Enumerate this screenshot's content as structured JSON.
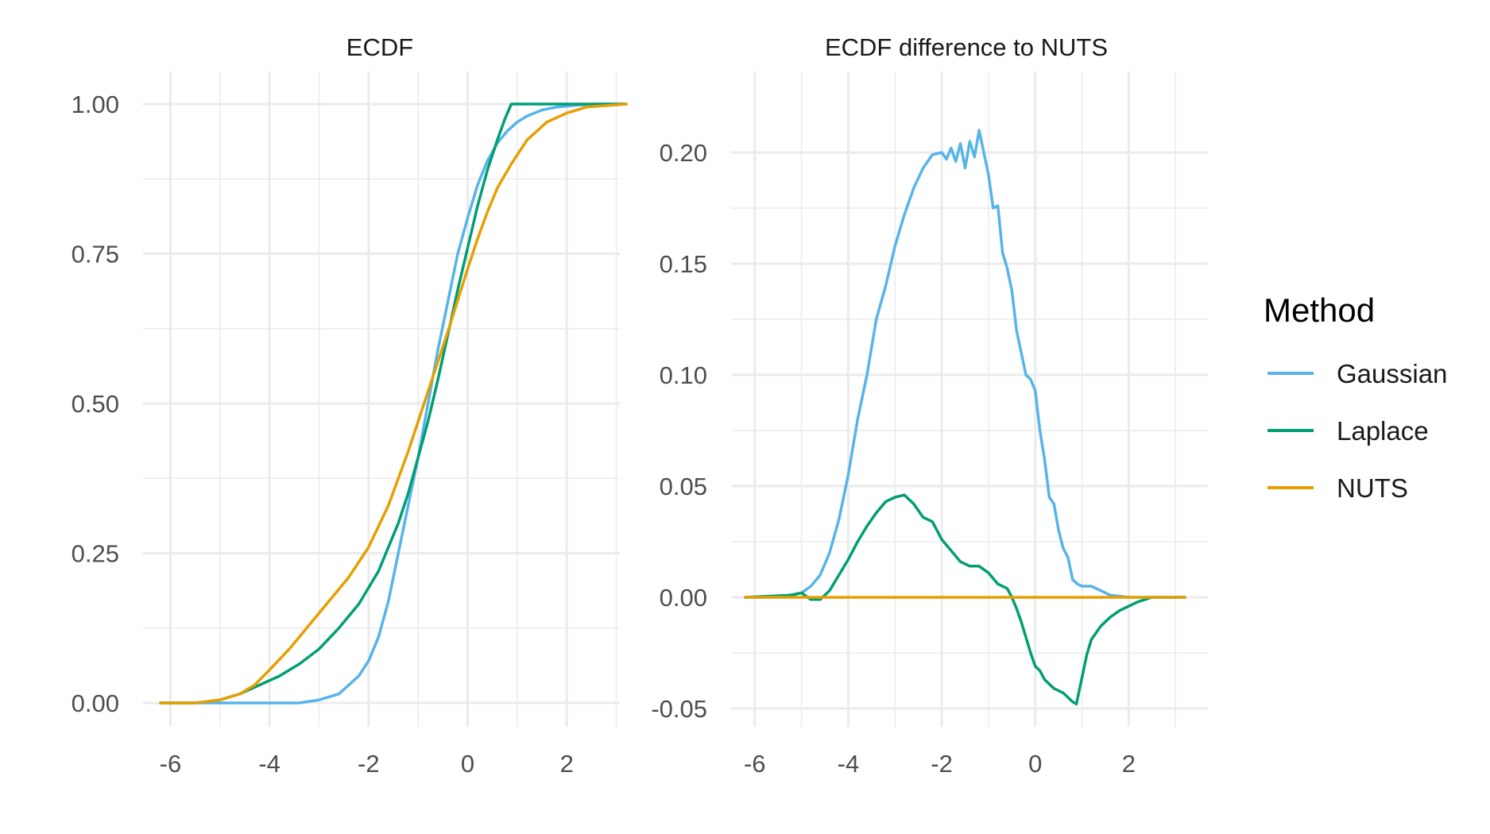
{
  "legend": {
    "title": "Method",
    "position": "right",
    "items": [
      {
        "name": "Gaussian",
        "color": "#56B4E9"
      },
      {
        "name": "Laplace",
        "color": "#009E73"
      },
      {
        "name": "NUTS",
        "color": "#E69F00"
      }
    ]
  },
  "chart_data": [
    {
      "type": "line",
      "title": "ECDF",
      "xlabel": "",
      "ylabel": "",
      "xlim": [
        -6.2,
        3.2
      ],
      "ylim": [
        0,
        1
      ],
      "grid": true,
      "x_ticks": [
        -6,
        -4,
        -2,
        0,
        2
      ],
      "x_tick_labels": [
        "-6",
        "-4",
        "-2",
        "0",
        "2"
      ],
      "y_ticks": [
        0,
        0.25,
        0.5,
        0.75,
        1
      ],
      "y_tick_labels": [
        "0.00",
        "0.25",
        "0.50",
        "0.75",
        "1.00"
      ],
      "series": [
        {
          "name": "Gaussian",
          "color": "#56B4E9",
          "points": [
            [
              -6.2,
              0
            ],
            [
              -5,
              0
            ],
            [
              -4,
              0
            ],
            [
              -3.4,
              0
            ],
            [
              -3,
              0.005
            ],
            [
              -2.6,
              0.015
            ],
            [
              -2.4,
              0.03
            ],
            [
              -2.2,
              0.045
            ],
            [
              -2,
              0.07
            ],
            [
              -1.8,
              0.11
            ],
            [
              -1.6,
              0.17
            ],
            [
              -1.4,
              0.25
            ],
            [
              -1.2,
              0.33
            ],
            [
              -1,
              0.41
            ],
            [
              -0.8,
              0.5
            ],
            [
              -0.6,
              0.59
            ],
            [
              -0.4,
              0.67
            ],
            [
              -0.2,
              0.75
            ],
            [
              0,
              0.81
            ],
            [
              0.2,
              0.865
            ],
            [
              0.4,
              0.905
            ],
            [
              0.6,
              0.935
            ],
            [
              0.8,
              0.955
            ],
            [
              1,
              0.97
            ],
            [
              1.2,
              0.98
            ],
            [
              1.5,
              0.99
            ],
            [
              1.8,
              0.995
            ],
            [
              2.2,
              0.998
            ],
            [
              2.6,
              1
            ],
            [
              3.2,
              1
            ]
          ]
        },
        {
          "name": "Laplace",
          "color": "#009E73",
          "points": [
            [
              -6.2,
              0
            ],
            [
              -5.5,
              0
            ],
            [
              -5,
              0.005
            ],
            [
              -4.6,
              0.015
            ],
            [
              -4.2,
              0.03
            ],
            [
              -3.8,
              0.045
            ],
            [
              -3.4,
              0.065
            ],
            [
              -3,
              0.09
            ],
            [
              -2.6,
              0.125
            ],
            [
              -2.2,
              0.165
            ],
            [
              -1.8,
              0.22
            ],
            [
              -1.4,
              0.3
            ],
            [
              -1.2,
              0.35
            ],
            [
              -1,
              0.41
            ],
            [
              -0.8,
              0.47
            ],
            [
              -0.6,
              0.54
            ],
            [
              -0.4,
              0.615
            ],
            [
              -0.2,
              0.69
            ],
            [
              0,
              0.76
            ],
            [
              0.2,
              0.83
            ],
            [
              0.4,
              0.89
            ],
            [
              0.6,
              0.94
            ],
            [
              0.75,
              0.975
            ],
            [
              0.88,
              1
            ],
            [
              1.5,
              1
            ],
            [
              2.5,
              1
            ],
            [
              3.2,
              1
            ]
          ]
        },
        {
          "name": "NUTS",
          "color": "#E69F00",
          "points": [
            [
              -6.2,
              0
            ],
            [
              -5.5,
              0
            ],
            [
              -5,
              0.005
            ],
            [
              -4.6,
              0.015
            ],
            [
              -4.3,
              0.03
            ],
            [
              -4,
              0.055
            ],
            [
              -3.6,
              0.09
            ],
            [
              -3.2,
              0.13
            ],
            [
              -2.8,
              0.17
            ],
            [
              -2.4,
              0.21
            ],
            [
              -2,
              0.26
            ],
            [
              -1.6,
              0.33
            ],
            [
              -1.2,
              0.42
            ],
            [
              -0.8,
              0.52
            ],
            [
              -0.4,
              0.62
            ],
            [
              0,
              0.725
            ],
            [
              0.2,
              0.775
            ],
            [
              0.4,
              0.82
            ],
            [
              0.6,
              0.86
            ],
            [
              0.88,
              0.9
            ],
            [
              1.2,
              0.94
            ],
            [
              1.6,
              0.97
            ],
            [
              2,
              0.985
            ],
            [
              2.4,
              0.995
            ],
            [
              3.2,
              1
            ]
          ]
        }
      ]
    },
    {
      "type": "line",
      "title": "ECDF difference to NUTS",
      "xlabel": "",
      "ylabel": "",
      "xlim": [
        -6.2,
        3.2
      ],
      "ylim": [
        -0.05,
        0.21
      ],
      "grid": true,
      "x_ticks": [
        -6,
        -4,
        -2,
        0,
        2
      ],
      "x_tick_labels": [
        "-6",
        "-4",
        "-2",
        "0",
        "2"
      ],
      "y_ticks": [
        -0.05,
        0,
        0.05,
        0.1,
        0.15,
        0.2
      ],
      "y_tick_labels": [
        "-0.05",
        "0.00",
        "0.05",
        "0.10",
        "0.15",
        "0.20"
      ],
      "series": [
        {
          "name": "Gaussian",
          "color": "#56B4E9",
          "points": [
            [
              -6.2,
              0
            ],
            [
              -5.5,
              0
            ],
            [
              -5,
              0.002
            ],
            [
              -4.8,
              0.005
            ],
            [
              -4.6,
              0.01
            ],
            [
              -4.4,
              0.02
            ],
            [
              -4.2,
              0.035
            ],
            [
              -4,
              0.055
            ],
            [
              -3.8,
              0.08
            ],
            [
              -3.6,
              0.1
            ],
            [
              -3.4,
              0.125
            ],
            [
              -3.2,
              0.14
            ],
            [
              -3,
              0.158
            ],
            [
              -2.8,
              0.172
            ],
            [
              -2.6,
              0.184
            ],
            [
              -2.4,
              0.193
            ],
            [
              -2.2,
              0.199
            ],
            [
              -2,
              0.2
            ],
            [
              -1.9,
              0.197
            ],
            [
              -1.8,
              0.202
            ],
            [
              -1.7,
              0.196
            ],
            [
              -1.6,
              0.204
            ],
            [
              -1.5,
              0.193
            ],
            [
              -1.4,
              0.205
            ],
            [
              -1.3,
              0.198
            ],
            [
              -1.2,
              0.21
            ],
            [
              -1.1,
              0.2
            ],
            [
              -1,
              0.19
            ],
            [
              -0.9,
              0.175
            ],
            [
              -0.8,
              0.176
            ],
            [
              -0.7,
              0.155
            ],
            [
              -0.6,
              0.148
            ],
            [
              -0.5,
              0.138
            ],
            [
              -0.4,
              0.12
            ],
            [
              -0.3,
              0.11
            ],
            [
              -0.2,
              0.1
            ],
            [
              -0.1,
              0.098
            ],
            [
              0,
              0.093
            ],
            [
              0.1,
              0.075
            ],
            [
              0.2,
              0.062
            ],
            [
              0.3,
              0.045
            ],
            [
              0.4,
              0.042
            ],
            [
              0.5,
              0.03
            ],
            [
              0.6,
              0.022
            ],
            [
              0.7,
              0.018
            ],
            [
              0.8,
              0.008
            ],
            [
              0.9,
              0.006
            ],
            [
              1,
              0.005
            ],
            [
              1.2,
              0.005
            ],
            [
              1.4,
              0.003
            ],
            [
              1.6,
              0.001
            ],
            [
              2,
              0
            ],
            [
              3.2,
              0
            ]
          ]
        },
        {
          "name": "Laplace",
          "color": "#009E73",
          "points": [
            [
              -6.2,
              0
            ],
            [
              -5.2,
              0.001
            ],
            [
              -5,
              0.002
            ],
            [
              -4.8,
              -0.001
            ],
            [
              -4.6,
              -0.001
            ],
            [
              -4.4,
              0.003
            ],
            [
              -4.2,
              0.01
            ],
            [
              -4,
              0.017
            ],
            [
              -3.8,
              0.025
            ],
            [
              -3.6,
              0.032
            ],
            [
              -3.4,
              0.038
            ],
            [
              -3.2,
              0.043
            ],
            [
              -3,
              0.045
            ],
            [
              -2.8,
              0.046
            ],
            [
              -2.6,
              0.042
            ],
            [
              -2.4,
              0.036
            ],
            [
              -2.2,
              0.034
            ],
            [
              -2,
              0.026
            ],
            [
              -1.8,
              0.021
            ],
            [
              -1.6,
              0.016
            ],
            [
              -1.4,
              0.014
            ],
            [
              -1.2,
              0.014
            ],
            [
              -1,
              0.011
            ],
            [
              -0.8,
              0.006
            ],
            [
              -0.6,
              0.004
            ],
            [
              -0.5,
              0
            ],
            [
              -0.4,
              -0.005
            ],
            [
              -0.3,
              -0.011
            ],
            [
              -0.2,
              -0.018
            ],
            [
              -0.1,
              -0.025
            ],
            [
              0,
              -0.031
            ],
            [
              0.1,
              -0.033
            ],
            [
              0.2,
              -0.037
            ],
            [
              0.3,
              -0.039
            ],
            [
              0.4,
              -0.041
            ],
            [
              0.5,
              -0.042
            ],
            [
              0.6,
              -0.043
            ],
            [
              0.7,
              -0.045
            ],
            [
              0.8,
              -0.047
            ],
            [
              0.88,
              -0.048
            ],
            [
              1,
              -0.036
            ],
            [
              1.1,
              -0.026
            ],
            [
              1.2,
              -0.019
            ],
            [
              1.4,
              -0.013
            ],
            [
              1.6,
              -0.009
            ],
            [
              1.8,
              -0.006
            ],
            [
              2,
              -0.004
            ],
            [
              2.2,
              -0.002
            ],
            [
              2.5,
              0
            ],
            [
              3.2,
              0
            ]
          ]
        },
        {
          "name": "NUTS",
          "color": "#E69F00",
          "points": [
            [
              -6.2,
              0
            ],
            [
              3.2,
              0
            ]
          ]
        }
      ]
    }
  ]
}
